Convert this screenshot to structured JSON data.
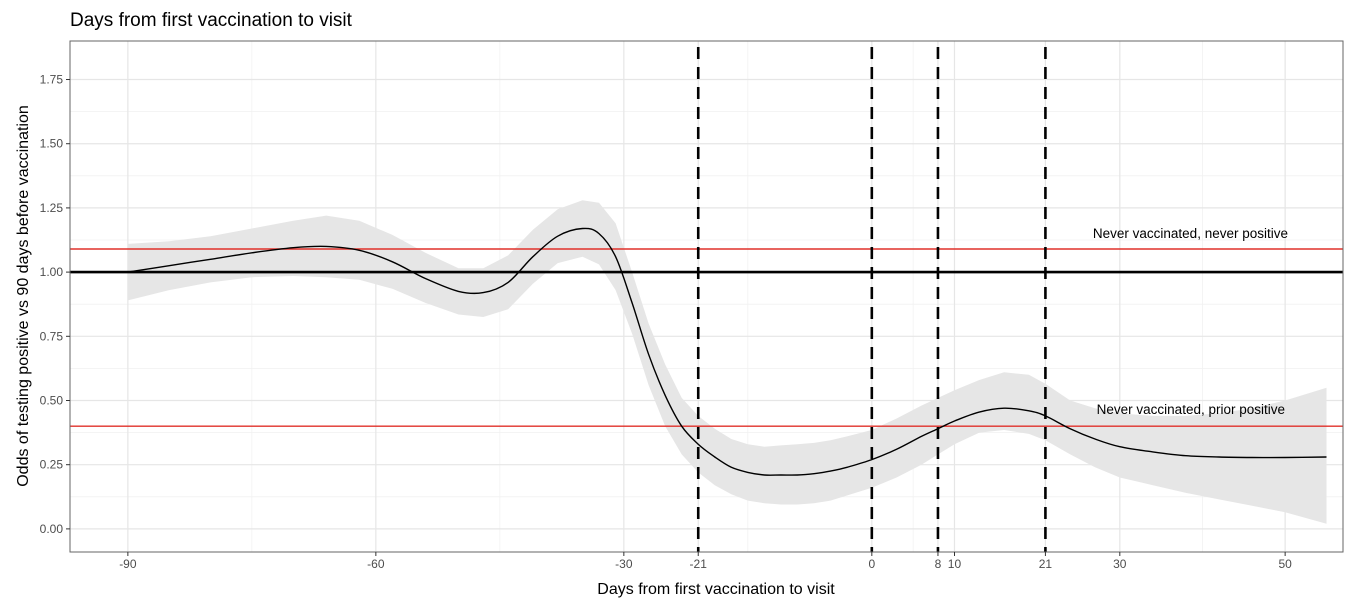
{
  "chart_data": {
    "type": "line",
    "title": "Days from first vaccination to visit",
    "xlabel": "Days from first vaccination to visit",
    "ylabel": "Odds of testing positive vs 90 days before vaccination",
    "xlim": [
      -97,
      57
    ],
    "ylim": [
      -0.09,
      1.9
    ],
    "x_ticks": [
      -90,
      -60,
      -30,
      -21,
      0,
      8,
      10,
      21,
      30,
      50
    ],
    "x_minor_grid": [
      -75,
      -45,
      -15,
      5,
      40
    ],
    "y_ticks": [
      0.0,
      0.25,
      0.5,
      0.75,
      1.0,
      1.25,
      1.5,
      1.75
    ],
    "y_tick_labels": [
      "0.00",
      "0.25",
      "0.50",
      "0.75",
      "1.00",
      "1.25",
      "1.50",
      "1.75"
    ],
    "grid": true,
    "series": [
      {
        "x": [
          -90,
          -85,
          -80,
          -75,
          -70,
          -66,
          -62,
          -58,
          -54,
          -50,
          -47,
          -44,
          -41,
          -38,
          -35,
          -33,
          -31,
          -29,
          -27,
          -25,
          -23,
          -21,
          -19,
          -17,
          -15,
          -13,
          -11,
          -9,
          -7,
          -5,
          -3,
          0,
          3,
          6,
          8,
          10,
          13,
          16,
          19,
          21,
          24,
          27,
          30,
          34,
          38,
          42,
          46,
          50,
          55
        ],
        "y": [
          1.0,
          1.025,
          1.05,
          1.075,
          1.095,
          1.1,
          1.085,
          1.04,
          0.975,
          0.925,
          0.92,
          0.96,
          1.06,
          1.14,
          1.17,
          1.15,
          1.06,
          0.88,
          0.68,
          0.52,
          0.4,
          0.33,
          0.28,
          0.24,
          0.22,
          0.21,
          0.21,
          0.21,
          0.215,
          0.225,
          0.24,
          0.27,
          0.31,
          0.36,
          0.39,
          0.42,
          0.455,
          0.47,
          0.46,
          0.44,
          0.39,
          0.35,
          0.32,
          0.3,
          0.285,
          0.28,
          0.278,
          0.278,
          0.28
        ],
        "lower": [
          0.89,
          0.93,
          0.96,
          0.98,
          0.985,
          0.98,
          0.97,
          0.935,
          0.88,
          0.835,
          0.825,
          0.855,
          0.955,
          1.035,
          1.06,
          1.03,
          0.93,
          0.76,
          0.56,
          0.4,
          0.29,
          0.22,
          0.17,
          0.135,
          0.11,
          0.1,
          0.095,
          0.095,
          0.1,
          0.11,
          0.13,
          0.16,
          0.2,
          0.25,
          0.29,
          0.33,
          0.375,
          0.385,
          0.37,
          0.345,
          0.29,
          0.24,
          0.2,
          0.17,
          0.14,
          0.115,
          0.09,
          0.065,
          0.02
        ],
        "upper": [
          1.11,
          1.12,
          1.14,
          1.17,
          1.2,
          1.22,
          1.2,
          1.145,
          1.075,
          1.015,
          1.015,
          1.065,
          1.165,
          1.245,
          1.28,
          1.27,
          1.19,
          1.0,
          0.8,
          0.64,
          0.51,
          0.44,
          0.39,
          0.35,
          0.33,
          0.32,
          0.325,
          0.33,
          0.335,
          0.345,
          0.36,
          0.385,
          0.43,
          0.48,
          0.51,
          0.54,
          0.58,
          0.61,
          0.6,
          0.565,
          0.5,
          0.47,
          0.45,
          0.44,
          0.44,
          0.45,
          0.47,
          0.5,
          0.55
        ]
      }
    ],
    "reference_lines": {
      "horizontal_black": 1.0,
      "horizontal_red": [
        {
          "y": 1.09,
          "label": "Never vaccinated, never positive"
        },
        {
          "y": 0.4,
          "label": "Never vaccinated, prior positive"
        }
      ],
      "vertical_dashed": [
        -21,
        0,
        8,
        21
      ]
    },
    "colors": {
      "line": "#000000",
      "band": "#e6e6e6",
      "red_lines": "#e0302a",
      "grid_major": "#e6e6e6",
      "grid_minor": "#f1f1f1",
      "frame": "#666666"
    }
  }
}
